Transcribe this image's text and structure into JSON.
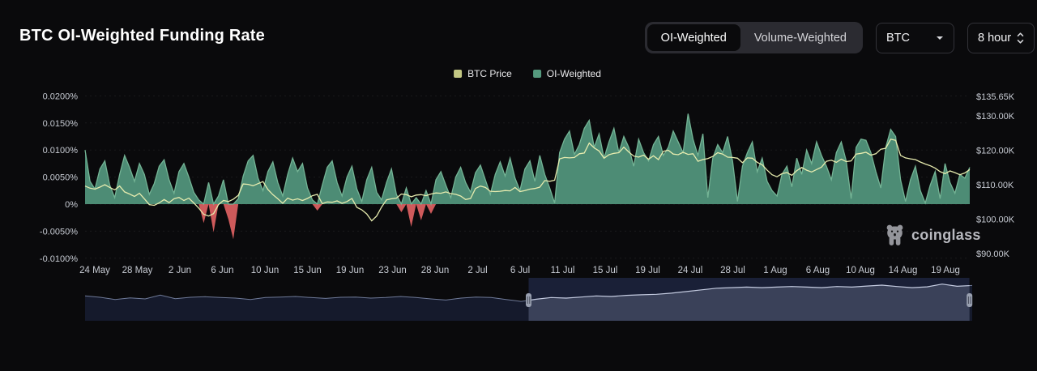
{
  "header": {
    "title": "BTC OI-Weighted Funding Rate",
    "toggle": {
      "options": [
        "OI-Weighted",
        "Volume-Weighted"
      ],
      "selected": "OI-Weighted"
    },
    "symbol_select": {
      "value": "BTC"
    },
    "interval_select": {
      "value": "8 hour"
    }
  },
  "legend": {
    "items": [
      {
        "label": "BTC Price",
        "color": "#c3c884"
      },
      {
        "label": "OI-Weighted",
        "color": "#55997e"
      }
    ]
  },
  "watermark": {
    "text": "coinglass",
    "icon": "coinglass-bear-icon"
  },
  "chart_data": {
    "type": "area",
    "title": "BTC OI-Weighted Funding Rate",
    "interval": "8 hour",
    "date_start": "24 May",
    "date_end": "21 Aug",
    "points_per_day": 2,
    "grid": "horizontal-dashed",
    "legend_position": "top-center",
    "x_tick_labels": [
      "24 May",
      "28 May",
      "2 Jun",
      "6 Jun",
      "10 Jun",
      "15 Jun",
      "19 Jun",
      "23 Jun",
      "28 Jun",
      "2 Jul",
      "6 Jul",
      "11 Jul",
      "15 Jul",
      "19 Jul",
      "24 Jul",
      "28 Jul",
      "1 Aug",
      "6 Aug",
      "10 Aug",
      "14 Aug",
      "19 Aug"
    ],
    "left_axis": {
      "title": "Funding Rate",
      "range": [
        -0.0112,
        0.0213
      ],
      "ticks": [
        {
          "label": "0.0200%",
          "value": 0.02
        },
        {
          "label": "0.0150%",
          "value": 0.015
        },
        {
          "label": "0.0100%",
          "value": 0.01
        },
        {
          "label": "0.0050%",
          "value": 0.005
        },
        {
          "label": "0%",
          "value": 0
        },
        {
          "label": "-0.0050%",
          "value": -0.005
        },
        {
          "label": "-0.0100%",
          "value": -0.01
        }
      ]
    },
    "right_axis": {
      "title": "BTC Price",
      "range_thousand_usd": [
        86.7,
        137.8
      ],
      "ticks": [
        {
          "label": "$135.65K",
          "value": 135.65
        },
        {
          "label": "$130.00K",
          "value": 130
        },
        {
          "label": "$120.00K",
          "value": 120
        },
        {
          "label": "$110.00K",
          "value": 110
        },
        {
          "label": "$100.00K",
          "value": 100
        },
        {
          "label": "$90.00K",
          "value": 90
        }
      ]
    },
    "series": [
      {
        "name": "OI-Weighted",
        "type": "area",
        "unit": "percent",
        "positive_color": "#4d8c75",
        "negative_color": "#ce5a5b",
        "edge_color": "#74b495",
        "values": [
          0.01,
          0.0042,
          0.0028,
          0.0065,
          0.008,
          0.0035,
          0.0012,
          0.0055,
          0.009,
          0.0068,
          0.0042,
          0.0075,
          0.0055,
          0.0018,
          0.0038,
          0.007,
          0.0082,
          0.0045,
          0.002,
          0.006,
          0.0075,
          0.005,
          0.0022,
          0.0008,
          -0.0035,
          0.004,
          -0.0052,
          0.0015,
          0.0045,
          -0.0028,
          -0.0065,
          0.001,
          0.0052,
          0.008,
          0.009,
          0.0048,
          0.0025,
          0.006,
          0.0078,
          0.004,
          0.0015,
          0.0055,
          0.0085,
          0.006,
          0.0075,
          0.003,
          0.0008,
          -0.0012,
          0.0035,
          0.0068,
          0.008,
          0.004,
          0.0015,
          0.005,
          0.007,
          0.0028,
          0.0005,
          0.0045,
          0.0068,
          0.0022,
          0.0008,
          0.004,
          0.0065,
          0.0018,
          -0.0015,
          0.003,
          -0.0042,
          0.0012,
          -0.003,
          0.0025,
          -0.0018,
          0.0045,
          0.006,
          0.0035,
          0.0012,
          0.005,
          0.0068,
          0.004,
          0.0022,
          0.0058,
          0.0072,
          0.0045,
          0.0018,
          0.0055,
          0.0078,
          0.0052,
          0.0085,
          0.0048,
          0.0025,
          0.0065,
          0.008,
          0.0042,
          0.009,
          0.0055,
          0.003,
          0.0002,
          0.0095,
          0.012,
          0.0135,
          0.0092,
          0.011,
          0.014,
          0.0155,
          0.0105,
          0.013,
          0.0085,
          0.0115,
          0.014,
          0.0095,
          0.0125,
          0.0105,
          0.007,
          0.012,
          0.0095,
          0.008,
          0.011,
          0.0125,
          0.009,
          0.0105,
          0.0135,
          0.0115,
          0.0095,
          0.0167,
          0.012,
          0.009,
          0.013,
          0.0012,
          0.0085,
          0.011,
          0.0095,
          0.0125,
          0.008,
          0.0005,
          0.007,
          0.0095,
          0.0115,
          0.006,
          0.0085,
          0.0042,
          0.0025,
          0.0015,
          0.0055,
          0.007,
          0.0032,
          0.0085,
          0.0055,
          0.01,
          0.0075,
          0.0115,
          0.009,
          0.007,
          0.0045,
          0.0095,
          0.0115,
          0.008,
          0.001,
          0.0105,
          0.012,
          0.0118,
          0.0095,
          0.006,
          0.003,
          0.0105,
          0.0138,
          0.0125,
          0.0045,
          0.0005,
          0.0045,
          0.007,
          0.0025,
          0.0002,
          0.0035,
          0.006,
          0.001,
          0.0075,
          0.004,
          0.002,
          0.0055,
          0.0048,
          0.0068
        ]
      },
      {
        "name": "BTC Price",
        "type": "line",
        "unit": "thousand USD",
        "color": "#e6ebae",
        "values": [
          109.6,
          109.0,
          108.7,
          109.3,
          110.0,
          109.2,
          108.5,
          109.6,
          107.9,
          107.3,
          106.6,
          107.5,
          105.9,
          104.2,
          104.0,
          104.7,
          105.7,
          104.8,
          105.9,
          106.3,
          105.4,
          106.1,
          104.7,
          103.2,
          101.4,
          100.9,
          101.6,
          104.2,
          105.4,
          105.1,
          105.8,
          106.9,
          110.2,
          110.1,
          109.7,
          110.3,
          110.9,
          108.6,
          107.1,
          105.9,
          104.6,
          106.1,
          105.5,
          105.9,
          105.4,
          106.0,
          106.8,
          107.2,
          104.5,
          105.0,
          104.9,
          105.3,
          104.6,
          105.1,
          106.0,
          103.4,
          102.7,
          101.5,
          99.5,
          100.9,
          103.5,
          105.6,
          105.9,
          106.1,
          107.3,
          107.1,
          106.5,
          107.0,
          107.1,
          106.8,
          107.3,
          107.6,
          107.5,
          107.9,
          107.4,
          107.2,
          106.7,
          105.7,
          106.0,
          108.9,
          109.6,
          109.2,
          108.1,
          108.0,
          108.1,
          108.3,
          108.2,
          109.2,
          108.0,
          108.3,
          108.7,
          108.9,
          109.3,
          111.2,
          111.0,
          111.3,
          117.5,
          117.9,
          117.8,
          117.9,
          119.0,
          119.2,
          122.1,
          120.7,
          119.8,
          117.7,
          118.7,
          119.1,
          119.3,
          120.9,
          119.5,
          118.3,
          118.0,
          118.6,
          117.4,
          118.4,
          117.3,
          119.7,
          120.0,
          118.9,
          118.7,
          119.4,
          118.8,
          119.0,
          116.8,
          117.3,
          117.6,
          118.2,
          119.3,
          118.9,
          118.0,
          117.9,
          117.7,
          116.4,
          117.8,
          117.7,
          116.5,
          115.8,
          114.2,
          112.9,
          112.3,
          113.2,
          113.5,
          112.7,
          114.1,
          115.0,
          114.2,
          113.7,
          114.4,
          115.1,
          116.8,
          117.1,
          116.5,
          117.4,
          116.7,
          116.9,
          118.9,
          119.1,
          119.4,
          118.6,
          119.0,
          120.3,
          120.6,
          123.2,
          122.9,
          118.5,
          117.8,
          117.5,
          117.3,
          116.6,
          116.0,
          115.5,
          114.8,
          113.8,
          113.2,
          114.0,
          113.5,
          112.9,
          113.4,
          114.4
        ]
      }
    ],
    "navigator": {
      "description": "price minimap with selected range",
      "selection_start_frac": 0.5,
      "selection_end_frac": 0.997,
      "values": [
        0.55,
        0.5,
        0.42,
        0.48,
        0.44,
        0.58,
        0.45,
        0.5,
        0.52,
        0.49,
        0.47,
        0.42,
        0.49,
        0.51,
        0.53,
        0.49,
        0.46,
        0.5,
        0.51,
        0.47,
        0.49,
        0.53,
        0.49,
        0.44,
        0.4,
        0.47,
        0.51,
        0.49,
        0.42,
        0.35,
        0.43,
        0.49,
        0.47,
        0.51,
        0.55,
        0.53,
        0.57,
        0.59,
        0.61,
        0.65,
        0.71,
        0.77,
        0.83,
        0.85,
        0.87,
        0.85,
        0.87,
        0.89,
        0.87,
        0.85,
        0.89,
        0.87,
        0.91,
        0.94,
        0.89,
        0.85,
        0.88,
        0.98,
        0.9,
        0.93
      ]
    }
  }
}
